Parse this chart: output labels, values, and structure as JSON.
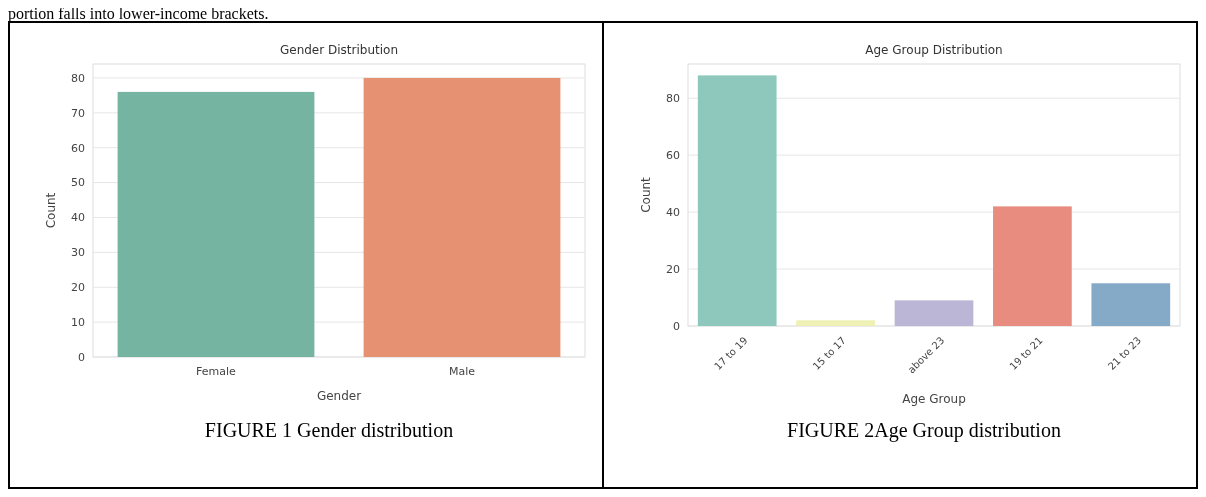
{
  "chart_data": [
    {
      "type": "bar",
      "title": "Gender Distribution",
      "xlabel": "Gender",
      "ylabel": "Count",
      "categories": [
        "Female",
        "Male"
      ],
      "colors": [
        "#76b4a2",
        "#e69272"
      ],
      "values": [
        76,
        80
      ],
      "ylim": [
        0,
        84
      ],
      "yticks": [
        0,
        10,
        20,
        30,
        40,
        50,
        60,
        70,
        80
      ],
      "grid": "y",
      "annotations": [
        "portion falls into lower-income brackets.",
        "FIGURE 1 Gender distribution"
      ]
    },
    {
      "type": "bar",
      "title": "Age Group Distribution",
      "xlabel": "Age Group",
      "ylabel": "Count",
      "categories": [
        "17 to 19",
        "15 to 17",
        "above 23",
        "19 to 21",
        "21 to 23"
      ],
      "colors": [
        "#8ec8bc",
        "#eef0b4",
        "#bbb6d6",
        "#e88c80",
        "#84aac8"
      ],
      "values": [
        88,
        2,
        9,
        42,
        15
      ],
      "ylim": [
        0,
        92
      ],
      "yticks": [
        0,
        20,
        40,
        60,
        80
      ],
      "grid": "y",
      "annotations": [
        "FIGURE 2Age Group distribution"
      ]
    }
  ]
}
